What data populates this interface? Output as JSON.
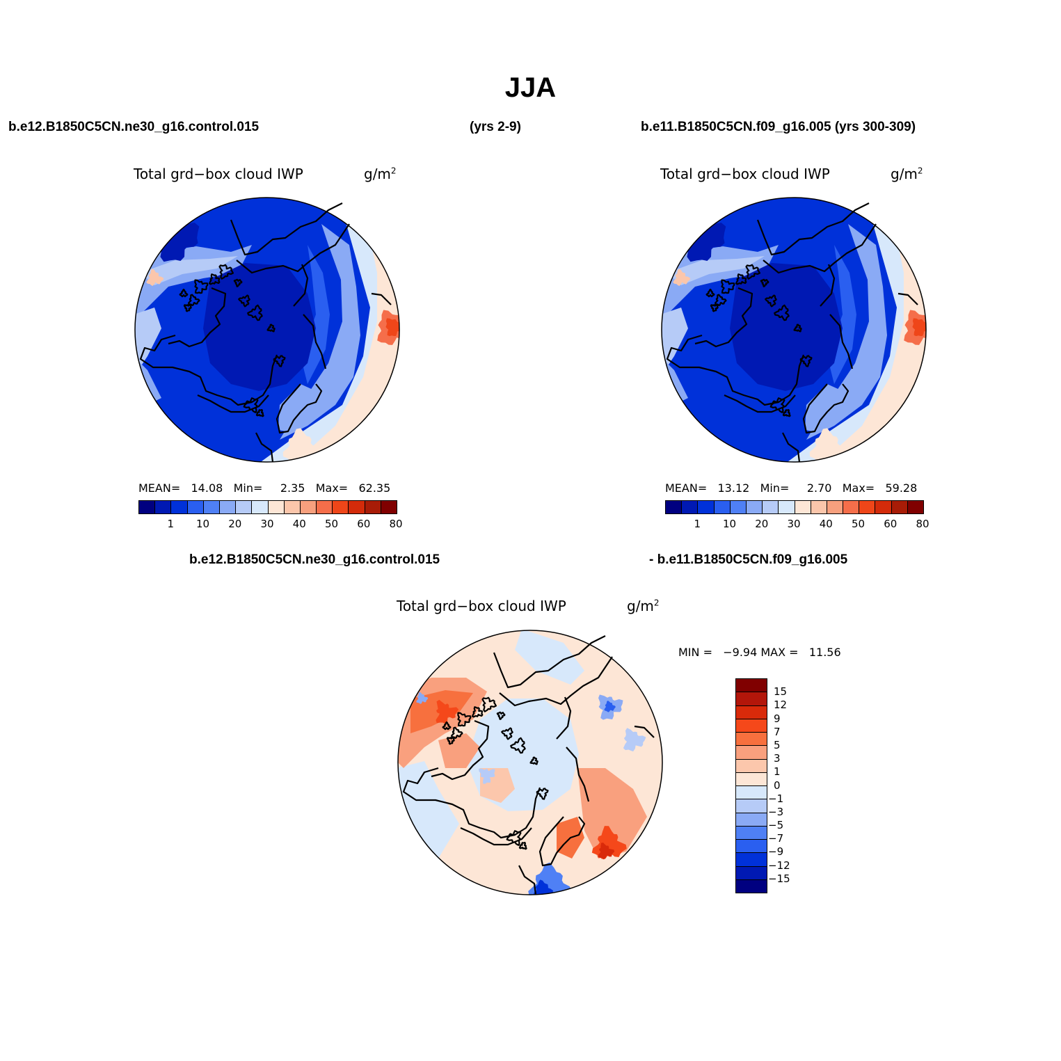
{
  "page": {
    "title": "JJA",
    "header_left": "b.e12.B1850C5CN.ne30_g16.control.015",
    "header_mid": "(yrs 2-9)",
    "header_right": "b.e11.B1850C5CN.f09_g16.005 (yrs 300-309)",
    "diff_label_left": "b.e12.B1850C5CN.ne30_g16.control.015",
    "diff_label_right": "- b.e11.B1850C5CN.f09_g16.005"
  },
  "chart_data": [
    {
      "type": "heatmap",
      "projection": "north polar stereographic",
      "title": "Total grd−box cloud IWP",
      "units": "g/m",
      "units_sup": "2",
      "stats": {
        "mean_label": "MEAN=",
        "mean": "14.08",
        "min_label": "Min=",
        "min": "2.35",
        "max_label": "Max=",
        "max": "62.35"
      },
      "colorbar": {
        "orientation": "horizontal",
        "colors": [
          "#000080",
          "#0019b3",
          "#0031d9",
          "#2a5ff0",
          "#4f80f5",
          "#8aaaf5",
          "#b6cbf7",
          "#d7e8fb",
          "#fde6d6",
          "#fbc6ab",
          "#f7a07e",
          "#f56e4a",
          "#ef4619",
          "#d32b0a",
          "#a81c07",
          "#800000"
        ],
        "labels": [
          "1",
          "10",
          "20",
          "30",
          "40",
          "50",
          "60",
          "80"
        ]
      }
    },
    {
      "type": "heatmap",
      "projection": "north polar stereographic",
      "title": "Total grd−box cloud IWP",
      "units": "g/m",
      "units_sup": "2",
      "stats": {
        "mean_label": "MEAN=",
        "mean": "13.12",
        "min_label": "Min=",
        "min": "2.70",
        "max_label": "Max=",
        "max": "59.28"
      },
      "colorbar": {
        "orientation": "horizontal",
        "colors": [
          "#000080",
          "#0019b3",
          "#0031d9",
          "#2a5ff0",
          "#4f80f5",
          "#8aaaf5",
          "#b6cbf7",
          "#d7e8fb",
          "#fde6d6",
          "#fbc6ab",
          "#f7a07e",
          "#f56e4a",
          "#ef4619",
          "#d32b0a",
          "#a81c07",
          "#800000"
        ],
        "labels": [
          "1",
          "10",
          "20",
          "30",
          "40",
          "50",
          "60",
          "80"
        ]
      }
    },
    {
      "type": "heatmap",
      "projection": "north polar stereographic",
      "title": "Total grd−box cloud IWP",
      "units": "g/m",
      "units_sup": "2",
      "stats": {
        "min_label": "MIN =",
        "min": "−9.94",
        "max_label": "MAX =",
        "max": "11.56"
      },
      "colorbar": {
        "orientation": "vertical",
        "colors": [
          "#800000",
          "#b3160a",
          "#d92a0a",
          "#f5481a",
          "#f7703e",
          "#f9a07e",
          "#fcc7ac",
          "#fde6d6",
          "#d7e8fb",
          "#b6cbf7",
          "#8aaaf5",
          "#4f80f5",
          "#2a5ff0",
          "#0031d9",
          "#0019b3",
          "#000080"
        ],
        "labels": [
          "15",
          "12",
          "9",
          "7",
          "5",
          "3",
          "1",
          "0",
          "−1",
          "−3",
          "−5",
          "−7",
          "−9",
          "−12",
          "−15"
        ]
      }
    }
  ]
}
